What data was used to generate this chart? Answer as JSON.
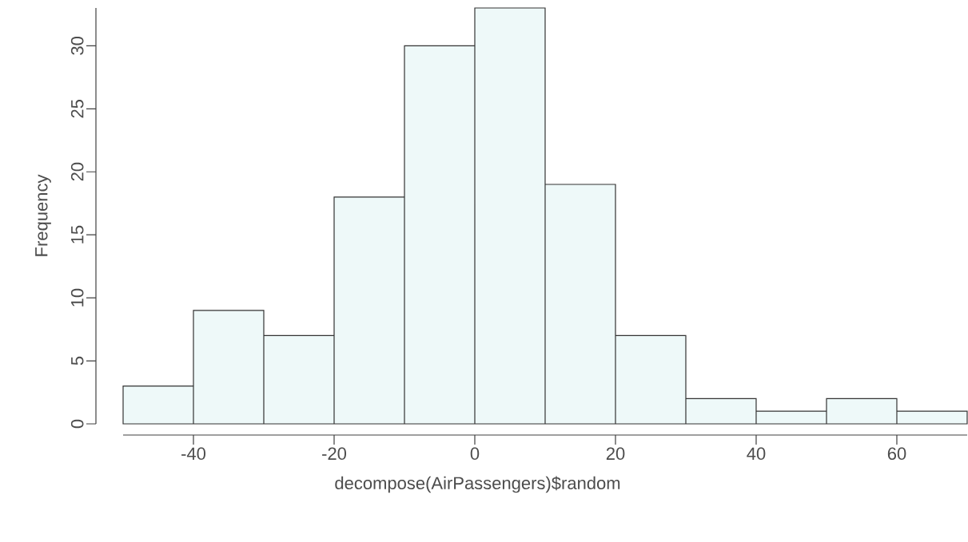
{
  "chart_data": {
    "type": "histogram",
    "xlabel": "decompose(AirPassengers)$random",
    "ylabel": "Frequency",
    "bins": [
      -50,
      -40,
      -30,
      -20,
      -10,
      0,
      10,
      20,
      30,
      40,
      50,
      60,
      70
    ],
    "values": [
      3,
      9,
      7,
      18,
      30,
      33,
      19,
      7,
      2,
      1,
      2,
      1
    ],
    "color": "#eef9f9",
    "xlim": [
      -50,
      70
    ],
    "ylim": [
      0,
      33
    ],
    "xticks": [
      -40,
      -20,
      0,
      20,
      40,
      60
    ],
    "yticks": [
      0,
      5,
      10,
      15,
      20,
      25,
      30
    ],
    "tick_labels": "xy"
  }
}
